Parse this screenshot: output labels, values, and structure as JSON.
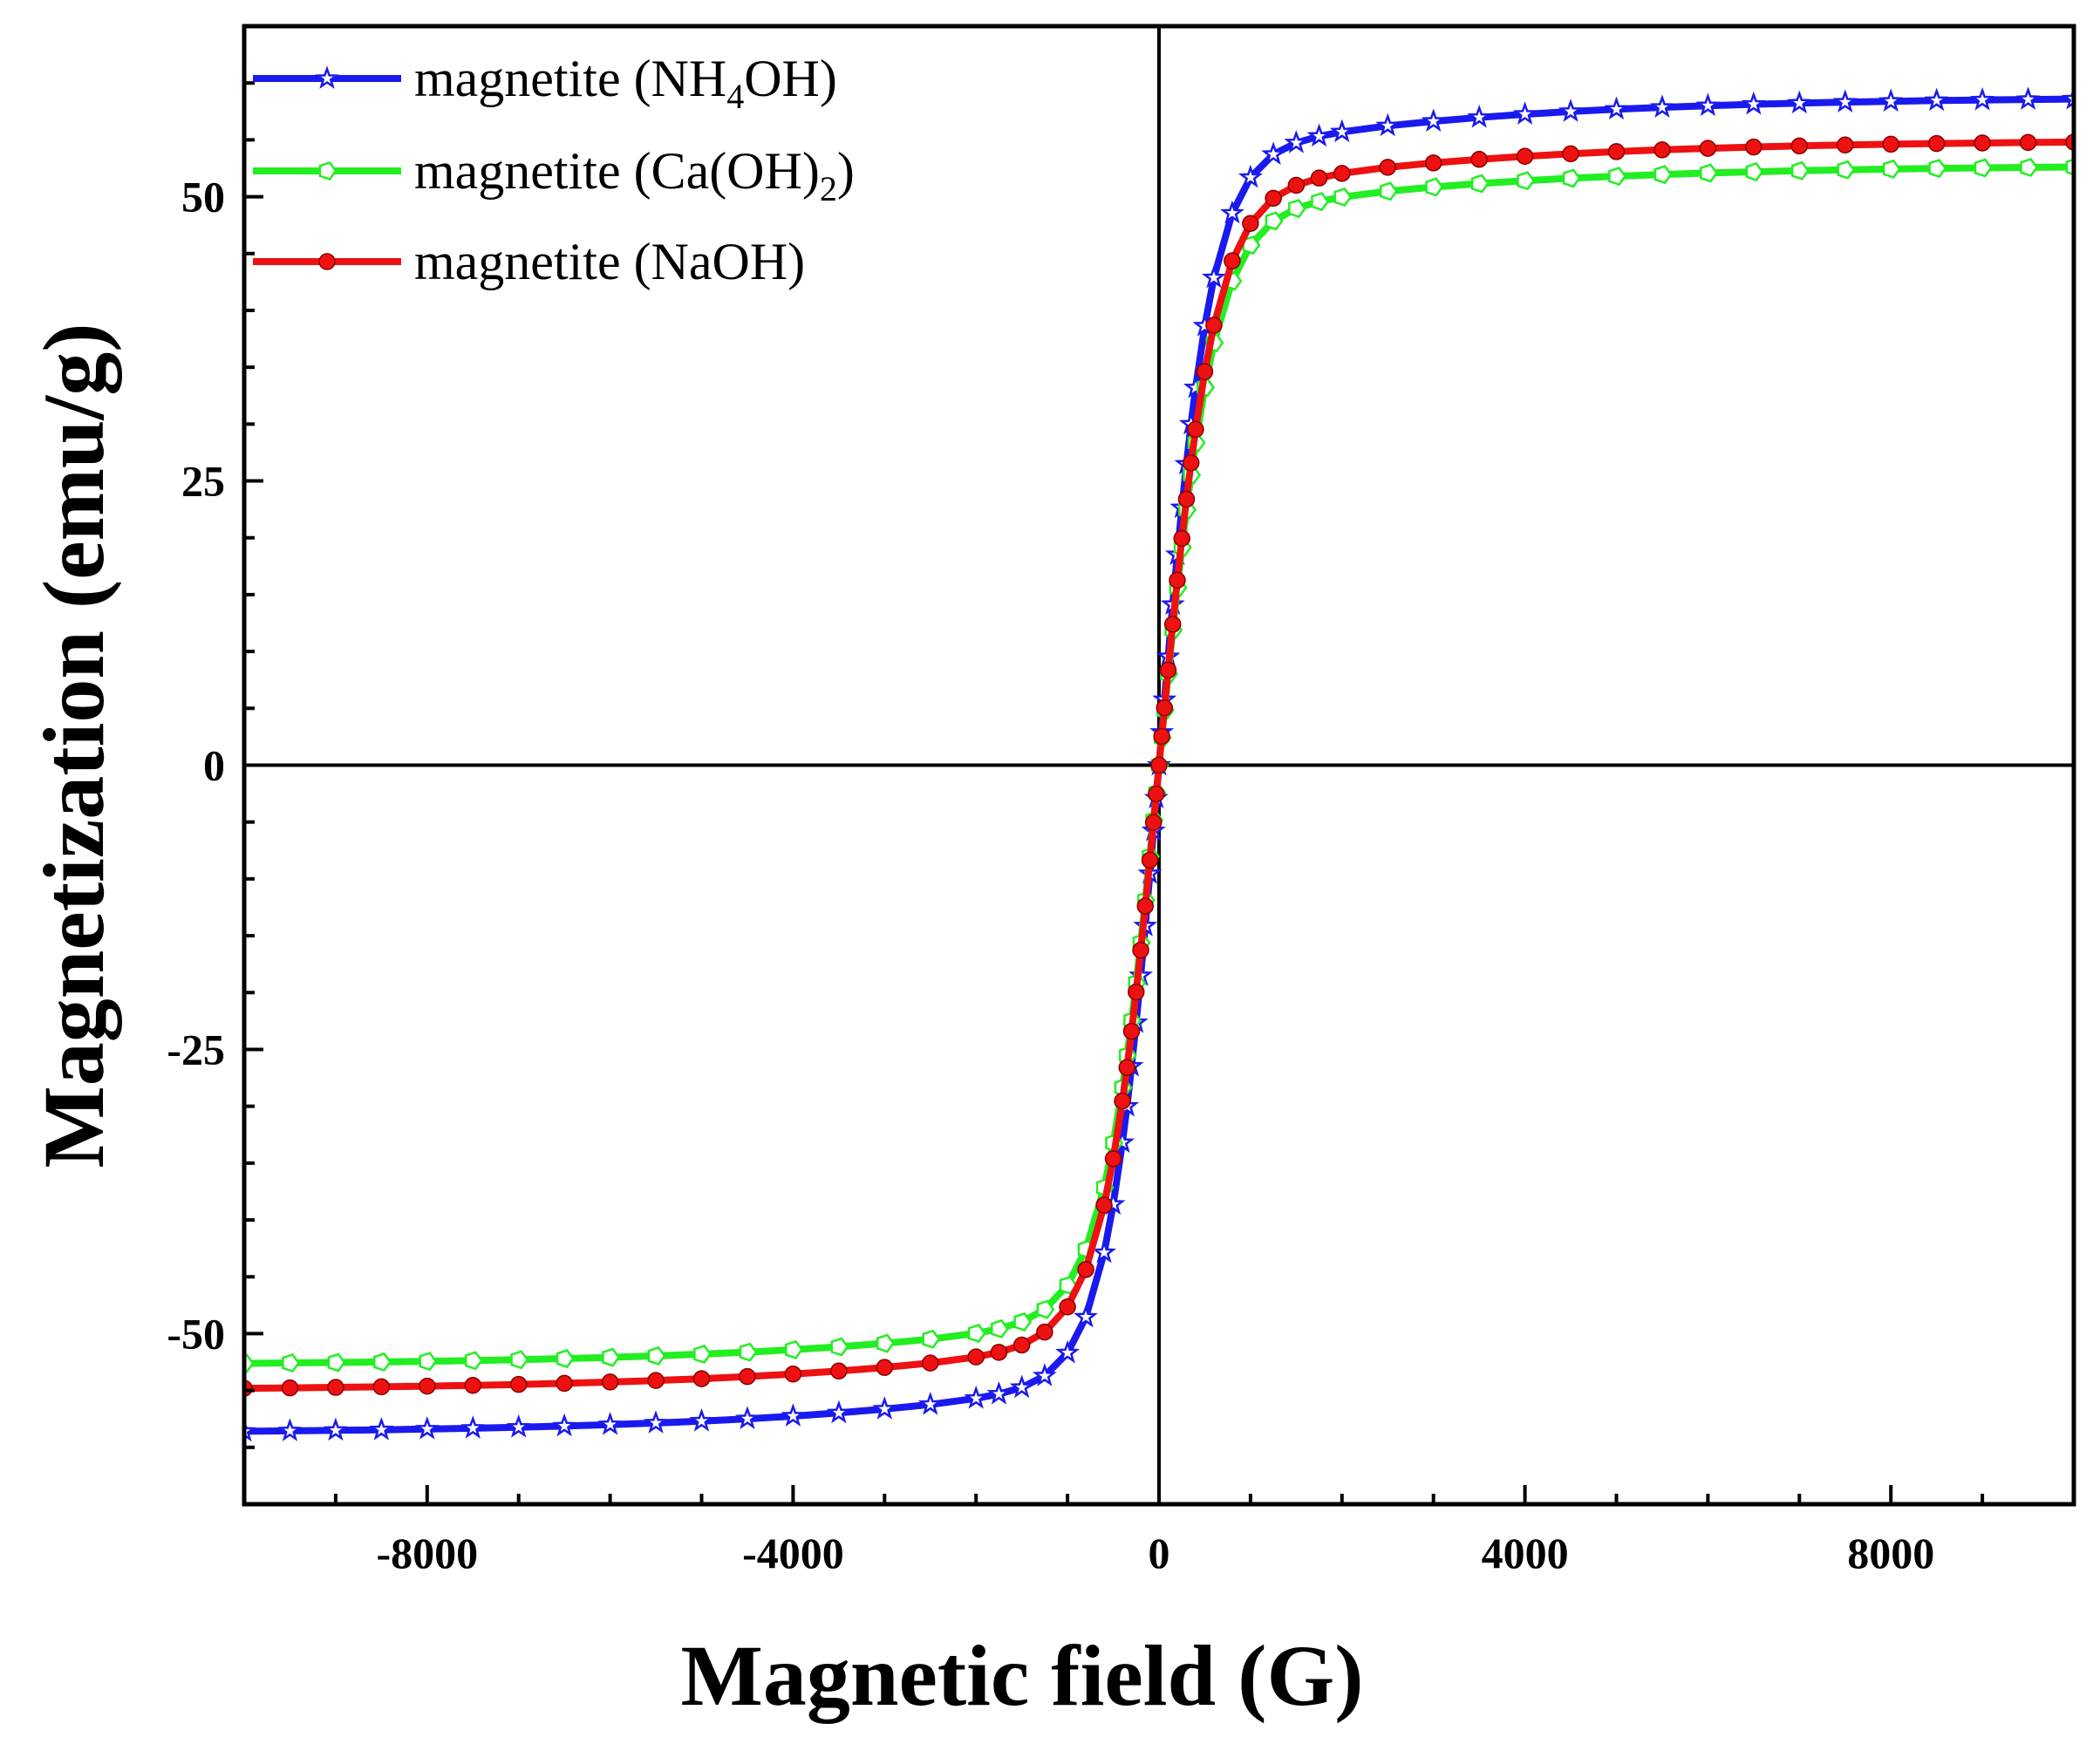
{
  "chart_data": {
    "type": "line",
    "title": "",
    "xlabel": "Magnetic field (G)",
    "ylabel": "Magnetization (emu/g)",
    "xlim": [
      -10000,
      10000
    ],
    "ylim": [
      -65,
      65
    ],
    "xticks": [
      -8000,
      -4000,
      0,
      4000,
      8000
    ],
    "xtick_labels": [
      "-8000",
      "-4000",
      "0",
      "4000",
      "8000"
    ],
    "yticks": [
      -50,
      -25,
      0,
      25,
      50
    ],
    "ytick_labels": [
      "-50",
      "-25",
      "0",
      "25",
      "50"
    ],
    "grid": false,
    "legend_position": "top-left",
    "series": [
      {
        "name": "magnetite (NH4OH)",
        "label_parts": [
          {
            "t": "magnetite (NH"
          },
          {
            "t": "4",
            "sub": true
          },
          {
            "t": "OH)"
          }
        ],
        "color": "#1a1aee",
        "marker": "star",
        "ms": 58.8,
        "hk": 560
      },
      {
        "name": "magnetite (Ca(OH)2)",
        "label_parts": [
          {
            "t": "magnetite (Ca(OH)"
          },
          {
            "t": "2",
            "sub": true
          },
          {
            "t": ")"
          }
        ],
        "color": "#22ee22",
        "marker": "pentagon",
        "ms": 52.8,
        "hk": 600
      },
      {
        "name": "magnetite (NaOH)",
        "label_parts": [
          {
            "t": "magnetite (NaOH)"
          }
        ],
        "color": "#ee1111",
        "marker": "circle",
        "ms": 55.0,
        "hk": 600
      }
    ],
    "x": [
      -10000,
      -9500,
      -9000,
      -8500,
      -8000,
      -7500,
      -7000,
      -6500,
      -6000,
      -5500,
      -5000,
      -4500,
      -4000,
      -3500,
      -3000,
      -2500,
      -2000,
      -1750,
      -1500,
      -1250,
      -1000,
      -800,
      -600,
      -500,
      -400,
      -350,
      -300,
      -250,
      -200,
      -150,
      -100,
      -60,
      -30,
      0,
      30,
      60,
      100,
      150,
      200,
      250,
      300,
      350,
      400,
      500,
      600,
      800,
      1000,
      1250,
      1500,
      1750,
      2000,
      2500,
      3000,
      3500,
      4000,
      4500,
      5000,
      5500,
      6000,
      6500,
      7000,
      7500,
      8000,
      8500,
      9000,
      9500,
      10000
    ]
  }
}
